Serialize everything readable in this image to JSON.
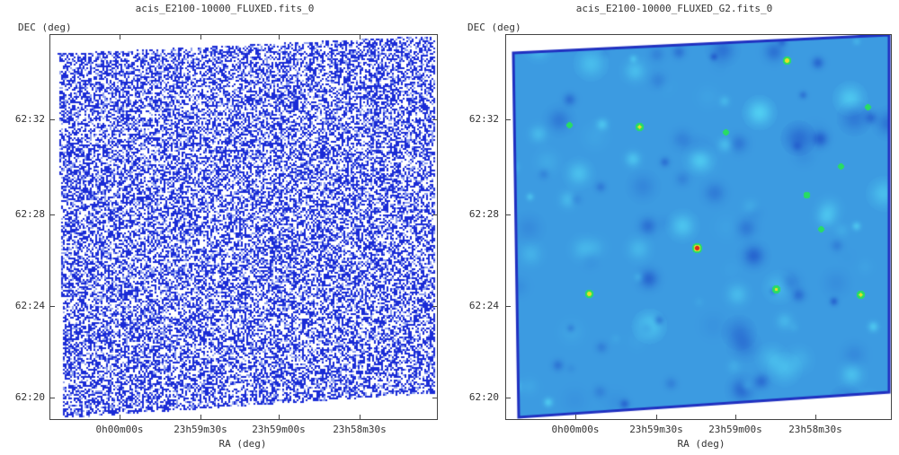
{
  "left": {
    "title": "acis_E2100-10000_FLUXED.fits_0",
    "y_axis_label": "DEC (deg)",
    "x_axis_label": "RA (deg)",
    "y_ticks": [
      "62:32",
      "62:28",
      "62:24",
      "62:20"
    ],
    "x_ticks": [
      "0h00m00s",
      "23h59m30s",
      "23h59m00s",
      "23h58m30s"
    ],
    "colormap": "blue-white scatter"
  },
  "right": {
    "title": "acis_E2100-10000_FLUXED_G2.fits_0",
    "y_axis_label": "DEC (deg)",
    "x_axis_label": "RA (deg)",
    "y_ticks": [
      "62:32",
      "62:28",
      "62:24",
      "62:20"
    ],
    "x_ticks": [
      "0h00m00s",
      "23h59m30s",
      "23h59m00s",
      "23h58m30s"
    ],
    "colormap": "smoothed cyan-blue with green/yellow/red sources"
  },
  "colors": {
    "pixel_blue": "#1a2bd6",
    "smooth_bg": "#3ec0f0",
    "smooth_dark": "#1030d0",
    "source_green": "#20e070",
    "source_yellow": "#f0e020",
    "source_red": "#e02020"
  }
}
